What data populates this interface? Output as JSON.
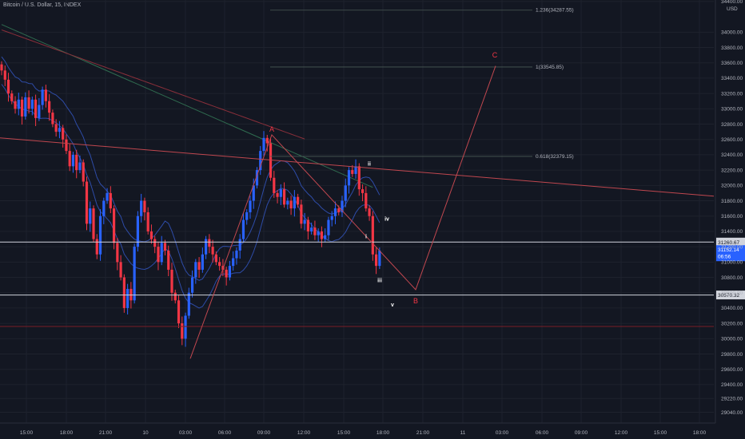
{
  "title": "Bitcoin / U.S. Dollar, 15, INDEX",
  "chart_data": {
    "type": "candlestick",
    "symbol": "Bitcoin / U.S. Dollar",
    "interval": "15",
    "source": "INDEX",
    "currency": "USD",
    "ylim": [
      28920,
      34420
    ],
    "x_ticks": [
      "15:00",
      "18:00",
      "21:00",
      "10",
      "03:00",
      "06:00",
      "09:00",
      "12:00",
      "15:00",
      "18:00",
      "21:00",
      "11",
      "03:00",
      "06:00",
      "09:00",
      "12:00",
      "15:00",
      "18:00"
    ],
    "y_ticks": [
      "34400.00",
      "34000.00",
      "33800.00",
      "33600.00",
      "33400.00",
      "33200.00",
      "33000.00",
      "32800.00",
      "32600.00",
      "32400.00",
      "32200.00",
      "32000.00",
      "31800.00",
      "31600.00",
      "31400.00",
      "31200.00",
      "31000.00",
      "30800.00",
      "30600.00",
      "30400.00",
      "30200.00",
      "30000.00",
      "29800.00",
      "29600.00",
      "29400.00",
      "29220.00",
      "29040.00"
    ],
    "current_price": "31152.14",
    "countdown": "06:56",
    "horizontal_levels": [
      {
        "label": "31260.67",
        "value": 31260.67
      },
      {
        "label": "30570.32",
        "value": 30570.32
      }
    ],
    "fib_levels": [
      {
        "label": "1.236(34287.55)",
        "value": 34287.55
      },
      {
        "label": "1(33545.85)",
        "value": 33545.85
      },
      {
        "label": "0.618(32379.15)",
        "value": 32379.15
      }
    ],
    "red_support_level": 30160,
    "abc_labels": [
      {
        "label": "A",
        "value": 32700
      },
      {
        "label": "B",
        "value": 30460
      },
      {
        "label": "C",
        "value": 33670
      }
    ],
    "wave_labels": [
      {
        "label": "ii",
        "value": 32260
      },
      {
        "label": "i",
        "value": 31310
      },
      {
        "label": "iv",
        "value": 31540
      },
      {
        "label": "iii",
        "value": 30740
      },
      {
        "label": "v",
        "value": 30420
      }
    ],
    "candles_close": [
      33500,
      33380,
      33200,
      33100,
      33000,
      33120,
      32900,
      33150,
      33000,
      33120,
      32880,
      33050,
      33250,
      33100,
      32950,
      32800,
      32700,
      32750,
      32600,
      32450,
      32250,
      32400,
      32200,
      32300,
      32050,
      31500,
      31700,
      31300,
      31100,
      31600,
      31800,
      31900,
      31700,
      31250,
      31000,
      30800,
      30400,
      30650,
      30500,
      31200,
      31600,
      31800,
      31650,
      31400,
      31300,
      31200,
      31000,
      31250,
      31150,
      30900,
      30600,
      30500,
      30200,
      30000,
      30300,
      30600,
      30800,
      31000,
      30900,
      31100,
      31300,
      31200,
      31100,
      31000,
      30950,
      30900,
      30800,
      30950,
      31050,
      31150,
      31300,
      31550,
      31650,
      31800,
      32000,
      32200,
      32450,
      32620,
      32550,
      32100,
      31900,
      31850,
      31950,
      31750,
      31800,
      31700,
      31850,
      31750,
      31500,
      31550,
      31400,
      31450,
      31350,
      31400,
      31300,
      31350,
      31550,
      31600,
      31700,
      31650,
      31800,
      32000,
      32200,
      32150,
      32250,
      31950,
      31900,
      31700,
      31600,
      31100,
      30950,
      31150
    ]
  }
}
